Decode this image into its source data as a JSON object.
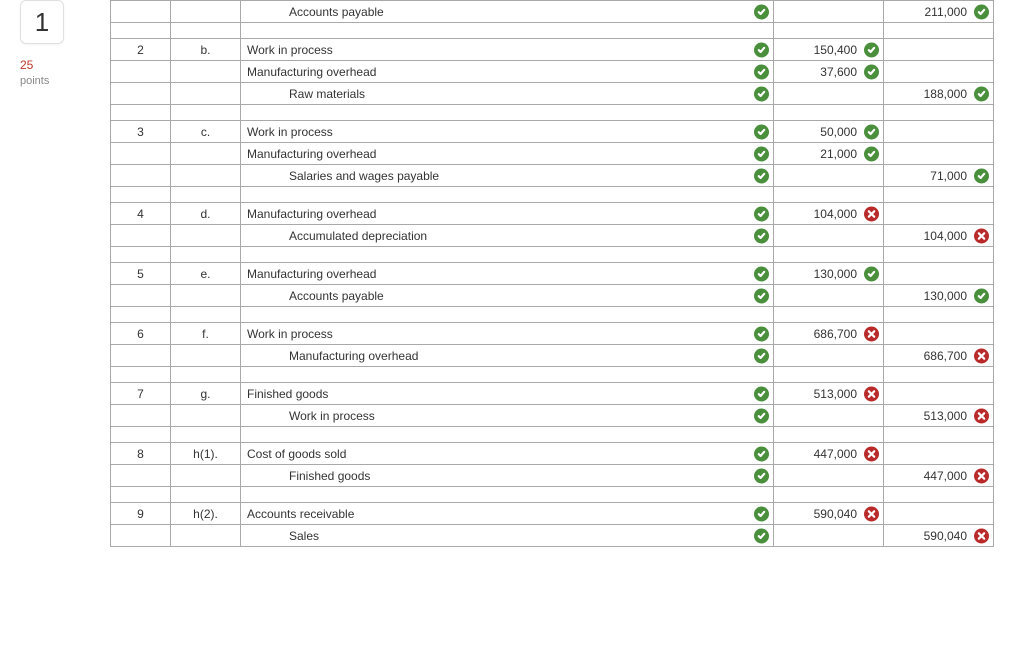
{
  "sidebar": {
    "question_number": "1",
    "points_value": "25",
    "points_label": "points"
  },
  "colors": {
    "correct": "#4a8f3c",
    "incorrect": "#b92a2a",
    "border": "#a9a9a9",
    "points_num": "#c0392b",
    "points_lbl": "#888888"
  },
  "column_widths": {
    "no": 60,
    "part": 70,
    "debit": 110,
    "credit": 110
  },
  "rows": [
    {
      "type": "entry",
      "no": "",
      "part": "",
      "account": "Accounts payable",
      "indent": 2,
      "acct_mark": "ok",
      "debit": "",
      "debit_mark": "",
      "credit": "211,000",
      "credit_mark": "ok"
    },
    {
      "type": "spacer"
    },
    {
      "type": "entry",
      "no": "2",
      "part": "b.",
      "account": "Work in process",
      "indent": 0,
      "acct_mark": "ok",
      "debit": "150,400",
      "debit_mark": "ok",
      "credit": "",
      "credit_mark": ""
    },
    {
      "type": "entry",
      "no": "",
      "part": "",
      "account": "Manufacturing overhead",
      "indent": 0,
      "acct_mark": "ok",
      "debit": "37,600",
      "debit_mark": "ok",
      "credit": "",
      "credit_mark": ""
    },
    {
      "type": "entry",
      "no": "",
      "part": "",
      "account": "Raw materials",
      "indent": 2,
      "acct_mark": "ok",
      "debit": "",
      "debit_mark": "",
      "credit": "188,000",
      "credit_mark": "ok"
    },
    {
      "type": "spacer"
    },
    {
      "type": "entry",
      "no": "3",
      "part": "c.",
      "account": "Work in process",
      "indent": 0,
      "acct_mark": "ok",
      "debit": "50,000",
      "debit_mark": "ok",
      "credit": "",
      "credit_mark": ""
    },
    {
      "type": "entry",
      "no": "",
      "part": "",
      "account": "Manufacturing overhead",
      "indent": 0,
      "acct_mark": "ok",
      "debit": "21,000",
      "debit_mark": "ok",
      "credit": "",
      "credit_mark": ""
    },
    {
      "type": "entry",
      "no": "",
      "part": "",
      "account": "Salaries and wages payable",
      "indent": 2,
      "acct_mark": "ok",
      "debit": "",
      "debit_mark": "",
      "credit": "71,000",
      "credit_mark": "ok"
    },
    {
      "type": "spacer"
    },
    {
      "type": "entry",
      "no": "4",
      "part": "d.",
      "account": "Manufacturing overhead",
      "indent": 0,
      "acct_mark": "ok",
      "debit": "104,000",
      "debit_mark": "bad",
      "credit": "",
      "credit_mark": ""
    },
    {
      "type": "entry",
      "no": "",
      "part": "",
      "account": "Accumulated depreciation",
      "indent": 2,
      "acct_mark": "ok",
      "debit": "",
      "debit_mark": "",
      "credit": "104,000",
      "credit_mark": "bad"
    },
    {
      "type": "spacer"
    },
    {
      "type": "entry",
      "no": "5",
      "part": "e.",
      "account": "Manufacturing overhead",
      "indent": 0,
      "acct_mark": "ok",
      "debit": "130,000",
      "debit_mark": "ok",
      "credit": "",
      "credit_mark": ""
    },
    {
      "type": "entry",
      "no": "",
      "part": "",
      "account": "Accounts payable",
      "indent": 2,
      "acct_mark": "ok",
      "debit": "",
      "debit_mark": "",
      "credit": "130,000",
      "credit_mark": "ok"
    },
    {
      "type": "spacer"
    },
    {
      "type": "entry",
      "no": "6",
      "part": "f.",
      "account": "Work in process",
      "indent": 0,
      "acct_mark": "ok",
      "debit": "686,700",
      "debit_mark": "bad",
      "credit": "",
      "credit_mark": ""
    },
    {
      "type": "entry",
      "no": "",
      "part": "",
      "account": "Manufacturing overhead",
      "indent": 2,
      "acct_mark": "ok",
      "debit": "",
      "debit_mark": "",
      "credit": "686,700",
      "credit_mark": "bad"
    },
    {
      "type": "spacer"
    },
    {
      "type": "entry",
      "no": "7",
      "part": "g.",
      "account": "Finished goods",
      "indent": 0,
      "acct_mark": "ok",
      "debit": "513,000",
      "debit_mark": "bad",
      "credit": "",
      "credit_mark": ""
    },
    {
      "type": "entry",
      "no": "",
      "part": "",
      "account": "Work in process",
      "indent": 2,
      "acct_mark": "ok",
      "debit": "",
      "debit_mark": "",
      "credit": "513,000",
      "credit_mark": "bad"
    },
    {
      "type": "spacer"
    },
    {
      "type": "entry",
      "no": "8",
      "part": "h(1).",
      "account": "Cost of goods sold",
      "indent": 0,
      "acct_mark": "ok",
      "debit": "447,000",
      "debit_mark": "bad",
      "credit": "",
      "credit_mark": ""
    },
    {
      "type": "entry",
      "no": "",
      "part": "",
      "account": "Finished goods",
      "indent": 2,
      "acct_mark": "ok",
      "debit": "",
      "debit_mark": "",
      "credit": "447,000",
      "credit_mark": "bad"
    },
    {
      "type": "spacer"
    },
    {
      "type": "entry",
      "no": "9",
      "part": "h(2).",
      "account": "Accounts receivable",
      "indent": 0,
      "acct_mark": "ok",
      "debit": "590,040",
      "debit_mark": "bad",
      "credit": "",
      "credit_mark": ""
    },
    {
      "type": "entry",
      "no": "",
      "part": "",
      "account": "Sales",
      "indent": 2,
      "acct_mark": "ok",
      "debit": "",
      "debit_mark": "",
      "credit": "590,040",
      "credit_mark": "bad"
    }
  ]
}
